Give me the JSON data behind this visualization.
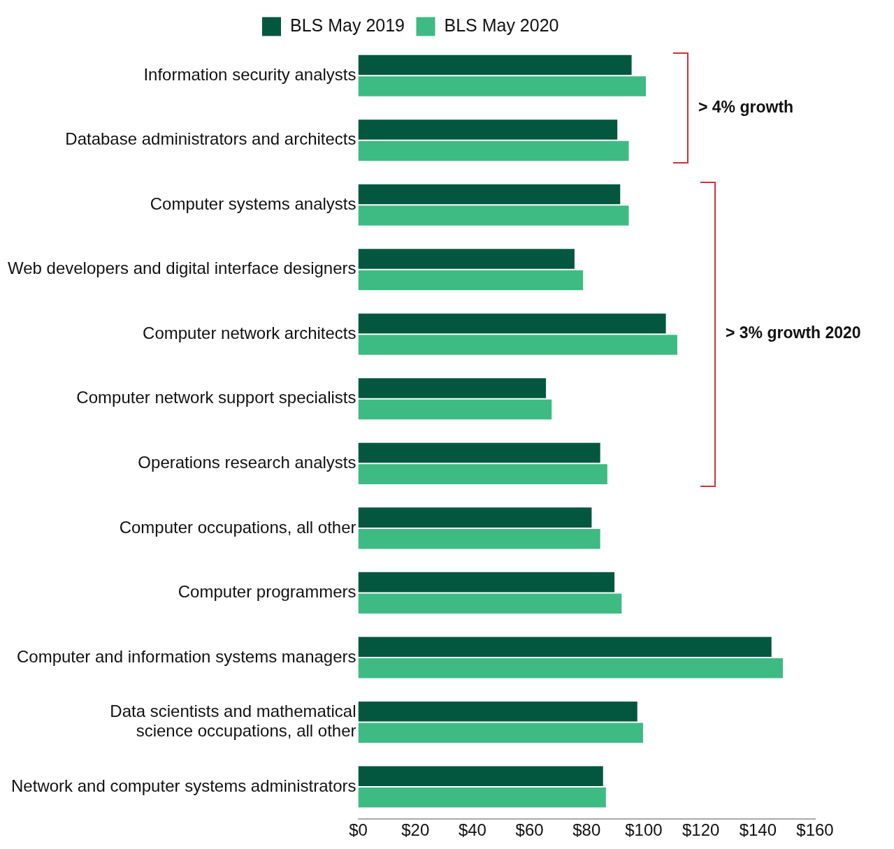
{
  "chart_data": {
    "type": "bar",
    "orientation": "horizontal",
    "categories": [
      "Information security analysts",
      "Database administrators and architects",
      "Computer systems analysts",
      "Web developers and digital interface designers",
      "Computer network architects",
      "Computer network support specialists",
      "Operations research analysts",
      "Computer occupations, all other",
      "Computer programmers",
      "Computer and information systems managers",
      "Data scientists and mathematical science occupations, all other",
      "Network and computer systems administrators"
    ],
    "series": [
      {
        "name": "BLS May 2019",
        "color": "#03573f",
        "values": [
          96,
          91,
          92,
          76,
          108,
          66,
          85,
          82,
          90,
          145,
          98,
          86
        ]
      },
      {
        "name": "BLS May 2020",
        "color": "#3dbb82",
        "values": [
          101,
          95,
          95,
          79,
          112,
          68,
          87.5,
          85,
          92.5,
          149,
          100,
          87
        ]
      }
    ],
    "xlim": [
      0,
      160
    ],
    "xticks": [
      {
        "value": 0,
        "label": "$0"
      },
      {
        "value": 20,
        "label": "$20"
      },
      {
        "value": 40,
        "label": "$40"
      },
      {
        "value": 60,
        "label": "$60"
      },
      {
        "value": 80,
        "label": "$80"
      },
      {
        "value": 100,
        "label": "$100"
      },
      {
        "value": 120,
        "label": "$120"
      },
      {
        "value": 140,
        "label": "$140"
      },
      {
        "value": 160,
        "label": "$160"
      }
    ],
    "grid": false,
    "legend": "top",
    "annotations": [
      "> 4% growth",
      "> 3% growth 2020"
    ]
  }
}
